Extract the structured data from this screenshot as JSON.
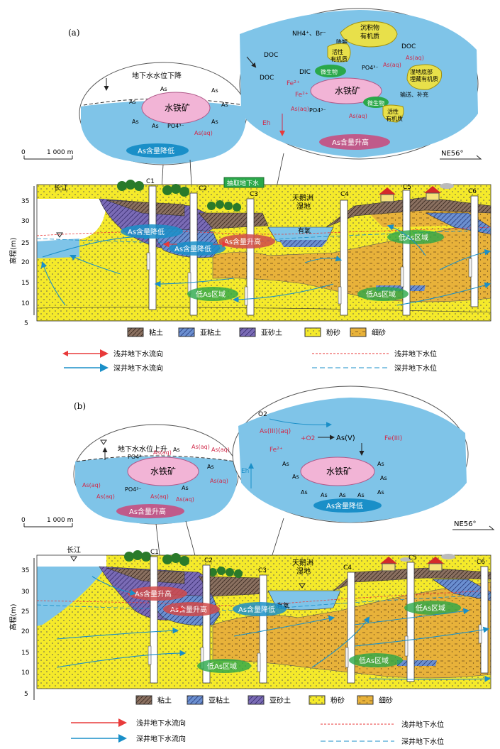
{
  "panel_a": {
    "label": "(a)",
    "scale": {
      "zero": "0",
      "dist": "1 000 m"
    },
    "direction": "NE56°",
    "ylabel": "高程(m)",
    "yticks": [
      "35",
      "30",
      "25",
      "20",
      "15",
      "10",
      "5"
    ],
    "river": "长江",
    "wetland": [
      "天鹅洲",
      "湿地"
    ],
    "wells": [
      "C1",
      "C2",
      "C3",
      "C4",
      "C5",
      "C6"
    ],
    "pump_label": "抽取地下水",
    "oxic": "有氧",
    "zones": {
      "as_down": "As含量降低",
      "as_down2": "As含量降低",
      "as_up": "As含量升高",
      "low_as1": "低As区域",
      "low_as2": "低As区域",
      "low_as3": "低As区域"
    },
    "bubble_left": {
      "title": "地下水水位下降",
      "mineral": "水铁矿",
      "as": "As",
      "po4": "PO4³⁻",
      "as_aq": "As(aq)",
      "result": "As含量降低"
    },
    "bubble_right": {
      "nh4_br": "NH4⁺、Br⁻",
      "sediment": [
        "沉积物",
        "有机质"
      ],
      "degrade": "降解",
      "active_om": [
        "活性",
        "有机质"
      ],
      "doc": "DOC",
      "dic": "DIC",
      "microbe": "微生物",
      "po4": "PO4³⁻",
      "mineral": "水铁矿",
      "fe2": "Fe²⁺",
      "as_aq": "As(aq)",
      "eh": "Eh",
      "wetland_om": [
        "湿地底部",
        "埋藏有机质"
      ],
      "transport": "输送、补充",
      "result": "As含量升高"
    }
  },
  "panel_b": {
    "label": "(b)",
    "scale": {
      "zero": "0",
      "dist": "1 000 m"
    },
    "direction": "NE56°",
    "ylabel": "高程(m)",
    "yticks": [
      "35",
      "30",
      "25",
      "20",
      "15",
      "10",
      "5"
    ],
    "river": "长江",
    "wetland": [
      "天鹅洲",
      "湿地"
    ],
    "wells": [
      "C1",
      "C2",
      "C3",
      "C4",
      "C5",
      "C6"
    ],
    "oxic": "有氧",
    "zones": {
      "as_up": "As含量升高",
      "as_up2": "As含量升高",
      "as_down": "As含量降低",
      "low_as1": "低As区域",
      "low_as2": "低As区域",
      "low_as3": "低As区域"
    },
    "bubble_left": {
      "title": "地下水水位上升",
      "mineral": "水铁矿",
      "as": "As",
      "po4": "PO4³⁻",
      "as_aq": "As(aq)",
      "result": "As含量升高"
    },
    "bubble_right": {
      "o2": "O2",
      "as3": "As(III)(aq)",
      "plus_o2": "+O2",
      "as5": "As(V)",
      "fe3": "Fe(III)",
      "fe2": "Fe²⁺",
      "eh": "Eh",
      "mineral": "水铁矿",
      "as": "As",
      "result": "As含量降低"
    }
  },
  "legend": {
    "clay": "粘土",
    "silty_clay": "亚粘土",
    "sandy_loam": "亚砂土",
    "silt": "粉砂",
    "fine_sand": "细砂",
    "shallow_flow": "浅井地下水流向",
    "deep_flow": "深井地下水流向",
    "shallow_level": "浅井地下水位",
    "deep_level": "深井地下水位"
  },
  "colors": {
    "water": "#7fc4e8",
    "clay": "#8a7060",
    "silty_clay": "#6b8fd0",
    "sandy_loam": "#7a6bb5",
    "silt": "#f5ea2a",
    "fine_sand": "#e8b23a",
    "shallow_arrow": "#e83a3a",
    "deep_arrow": "#1a8fc8",
    "mineral": "#f2b4d6",
    "microbe": "#2aa84a",
    "organic": "#e8e04a"
  }
}
